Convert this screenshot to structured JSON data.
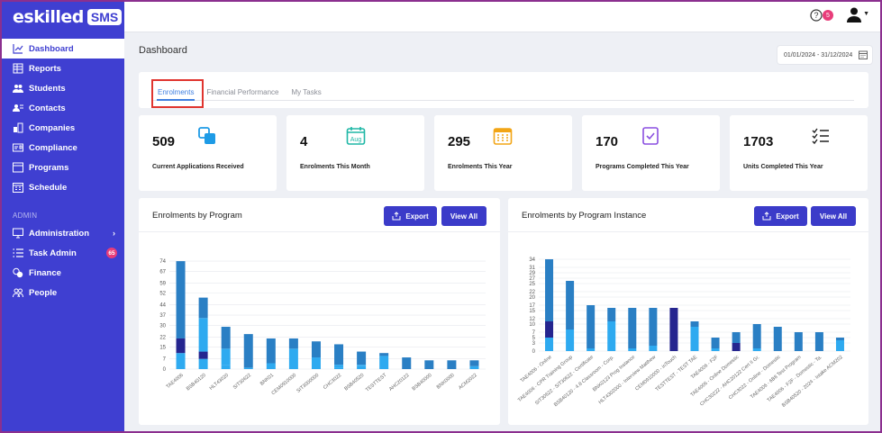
{
  "brand": {
    "name": "eskilled",
    "badge": "SMS"
  },
  "sidebar": {
    "items": [
      {
        "label": "Dashboard",
        "icon": "chart-line-icon",
        "active": true
      },
      {
        "label": "Reports",
        "icon": "table-icon"
      },
      {
        "label": "Students",
        "icon": "users-icon"
      },
      {
        "label": "Contacts",
        "icon": "contact-card-icon"
      },
      {
        "label": "Companies",
        "icon": "building-icon"
      },
      {
        "label": "Compliance",
        "icon": "id-card-icon"
      },
      {
        "label": "Programs",
        "icon": "window-icon"
      },
      {
        "label": "Schedule",
        "icon": "calendar-icon"
      }
    ],
    "admin_section": "ADMIN",
    "admin_items": [
      {
        "label": "Administration",
        "icon": "monitor-icon"
      },
      {
        "label": "Task Admin",
        "icon": "list-icon",
        "count": "65"
      },
      {
        "label": "Finance",
        "icon": "coins-icon"
      },
      {
        "label": "People",
        "icon": "people-icon"
      }
    ]
  },
  "topbar": {
    "notification_count": "5"
  },
  "page": {
    "title": "Dashboard",
    "date_range": "01/01/2024 - 31/12/2024"
  },
  "tabs": [
    "Enrolments",
    "Financial Performance",
    "My Tasks"
  ],
  "kpis": [
    {
      "value": "509",
      "label": "Current Applications Received",
      "icon": "squares-icon",
      "color": "#1e9be6"
    },
    {
      "value": "4",
      "label": "Enrolments This Month",
      "icon": "calendar-aug-icon",
      "color": "#1fb7a6"
    },
    {
      "value": "295",
      "label": "Enrolments This Year",
      "icon": "calendar-grid-icon",
      "color": "#f2a516"
    },
    {
      "value": "170",
      "label": "Programs Completed This Year",
      "icon": "clipboard-check-icon",
      "color": "#8a4fe0"
    },
    {
      "value": "1703",
      "label": "Units Completed This Year",
      "icon": "checklist-icon",
      "color": "#222222"
    }
  ],
  "buttons": {
    "export": "Export",
    "view_all": "View All"
  },
  "colors": {
    "primary": "#3f3fd1",
    "series_a": "#2a7fc4",
    "series_b": "#25258f",
    "series_c": "#2eaaf0"
  },
  "chart_data": [
    {
      "type": "bar",
      "title": "Enrolments by Program",
      "stacked": true,
      "ylim": [
        0,
        79
      ],
      "yticks": [
        0,
        7,
        15,
        22,
        30,
        37,
        44,
        52,
        59,
        67,
        74
      ],
      "categories": [
        "TAE4006",
        "BSB40120",
        "HLT43020",
        "SIT30622",
        "BNK01",
        "CEM0910000",
        "SIT3000000",
        "CHC3022",
        "BSB40520",
        "TESTTEST",
        "AHC20122",
        "BSB40000",
        "BNK0000",
        "ACM2022"
      ],
      "series": [
        {
          "values": [
            11,
            7,
            3,
            0,
            0,
            0,
            0,
            1,
            2,
            0,
            0,
            0,
            0,
            0
          ]
        },
        {
          "values": [
            10,
            5,
            0,
            0,
            0,
            0,
            0,
            0,
            0,
            0,
            0,
            0,
            0,
            0
          ]
        },
        {
          "values": [
            0,
            23,
            11,
            1,
            4,
            14,
            8,
            2,
            1,
            9,
            0,
            0,
            0,
            2
          ]
        },
        {
          "values": [
            53,
            14,
            15,
            23,
            17,
            7,
            11,
            14,
            9,
            2,
            8,
            6,
            6,
            4
          ]
        }
      ]
    },
    {
      "type": "bar",
      "title": "Enrolments by Program Instance",
      "stacked": true,
      "ylim": [
        0,
        36
      ],
      "yticks": [
        0,
        3,
        5,
        7,
        10,
        12,
        15,
        17,
        20,
        22,
        25,
        27,
        29,
        31,
        34
      ],
      "categories": [
        "TAE4006 - Online",
        "TAE4006 - CPR Training Group",
        "SIT30622 - SIT30622 - Certificate",
        "BSB40120 - 4.8 Classroom - Corp.",
        "BNK0123 Prog Instance",
        "HLT4302000 - Interview Matthew",
        "CEM0910000 - inTouch",
        "TESTTEST - TEST TAE",
        "TAE4006 - F2F",
        "TAE4006 - Online Domestic",
        "CHC30222 - AHC20122 Cert II Gr.",
        "CHC3022 - Online - Domestic",
        "TAE4006 - 6B8 Test Program",
        "TAE4006 - F2F - Domestic - Ta.",
        "BSB40520 - 2024 - Intake ACM202"
      ],
      "series": [
        {
          "values": [
            5,
            8,
            1,
            11,
            1,
            2,
            0,
            9,
            1,
            0,
            1,
            0,
            0,
            0,
            4
          ]
        },
        {
          "values": [
            6,
            0,
            0,
            0,
            0,
            0,
            16,
            0,
            0,
            3,
            0,
            0,
            0,
            0,
            0
          ]
        },
        {
          "values": [
            23,
            18,
            16,
            5,
            15,
            14,
            0,
            2,
            4,
            4,
            9,
            9,
            7,
            7,
            1
          ]
        }
      ]
    }
  ]
}
